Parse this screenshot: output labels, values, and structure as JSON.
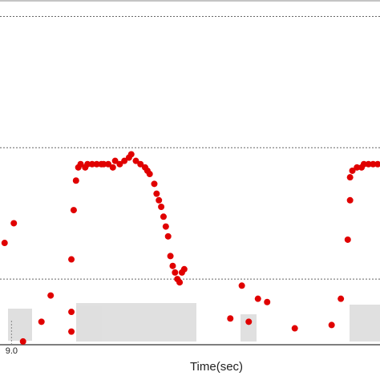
{
  "chart_data": {
    "type": "scatter",
    "x_label": "Time(sec)",
    "color": "#e00000",
    "xlim": [
      8.95,
      10.6
    ],
    "xticks": [
      {
        "value": 9,
        "label": "9.0"
      }
    ],
    "ylim": [
      0,
      105
    ],
    "yticks": [
      20,
      60,
      100
    ],
    "grid": true,
    "x": [
      8.97,
      9.01,
      9.05,
      9.13,
      9.17,
      9.26,
      9.26,
      9.26,
      9.27,
      9.28,
      9.29,
      9.3,
      9.32,
      9.33,
      9.35,
      9.37,
      9.39,
      9.4,
      9.42,
      9.44,
      9.45,
      9.47,
      9.49,
      9.51,
      9.52,
      9.54,
      9.56,
      9.58,
      9.59,
      9.6,
      9.62,
      9.63,
      9.64,
      9.65,
      9.66,
      9.67,
      9.68,
      9.69,
      9.7,
      9.71,
      9.72,
      9.73,
      9.74,
      9.75,
      9.95,
      10.0,
      10.03,
      10.07,
      10.11,
      10.23,
      10.39,
      10.43,
      10.46,
      10.47,
      10.47,
      10.48,
      10.5,
      10.52,
      10.53,
      10.55,
      10.57,
      10.59
    ],
    "values": [
      31,
      37,
      1,
      7,
      15,
      10,
      4,
      26,
      41,
      50,
      54,
      55,
      54,
      55,
      55,
      55,
      55,
      55,
      55,
      54,
      56,
      55,
      56,
      57,
      58,
      56,
      55,
      54,
      53,
      52,
      49,
      46,
      44,
      42,
      39,
      36,
      33,
      27,
      24,
      22,
      20,
      19,
      22,
      23,
      8,
      18,
      7,
      14,
      13,
      5,
      6,
      14,
      32,
      44,
      51,
      53,
      54,
      54,
      55,
      55,
      55,
      55
    ]
  }
}
